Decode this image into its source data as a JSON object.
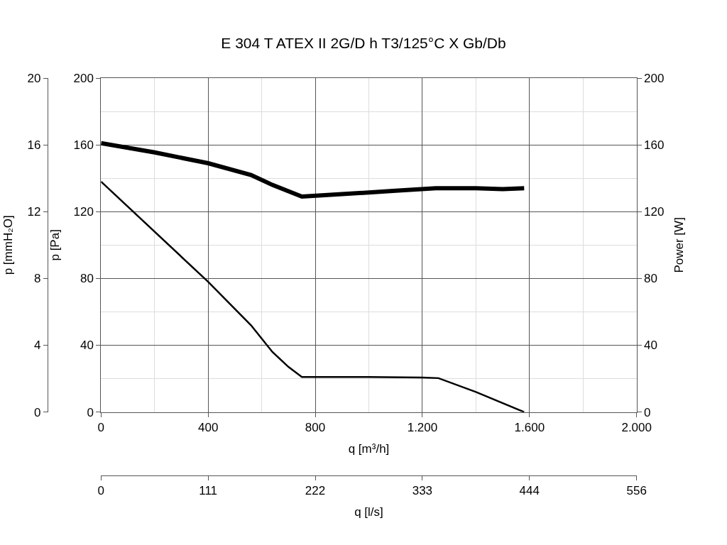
{
  "chart_data": {
    "type": "line",
    "title": "E 304 T ATEX II 2G/D h T3/125°C X Gb/Db",
    "xlabel": "q [m³/h]",
    "ylabel": "p [Pa]",
    "y2label": "Power [W]",
    "y3label": "p [mmH₂O]",
    "x2label": "q [l/s]",
    "xlim": [
      0,
      2000
    ],
    "xticks": [
      0,
      {
        "value": 200,
        "label": null
      },
      400,
      {
        "value": 600,
        "label": null
      },
      800,
      {
        "value": 1000,
        "label": null
      },
      {
        "value": 1200,
        "label": "1.200"
      },
      {
        "value": 1400,
        "label": null
      },
      {
        "value": 1600,
        "label": "1.600"
      },
      {
        "value": 1800,
        "label": null
      },
      {
        "value": 2000,
        "label": "2.000"
      }
    ],
    "ylim": [
      0,
      200
    ],
    "yticks": [
      0,
      {
        "value": 20,
        "label": null
      },
      40,
      {
        "value": 60,
        "label": null
      },
      80,
      {
        "value": 100,
        "label": null
      },
      120,
      {
        "value": 140,
        "label": null
      },
      160,
      {
        "value": 180,
        "label": null
      },
      200
    ],
    "y2lim": [
      0,
      200
    ],
    "y2ticks": [
      0,
      40,
      80,
      120,
      160,
      200
    ],
    "y3lim": [
      0,
      20
    ],
    "y3ticks": [
      0,
      4,
      8,
      12,
      16,
      20
    ],
    "x2lim": [
      0,
      555.6
    ],
    "x2ticks": [
      0,
      {
        "value": 111.1,
        "label": "111"
      },
      {
        "value": 222.2,
        "label": "222"
      },
      {
        "value": 333.3,
        "label": "333"
      },
      {
        "value": 444.4,
        "label": "444"
      },
      {
        "value": 555.6,
        "label": "556"
      }
    ],
    "grid": true,
    "series": [
      {
        "color": "#000000",
        "x": [
          0,
          400,
          560,
          640,
          700,
          750,
          800,
          1000,
          1200,
          1260,
          1400,
          1580
        ],
        "values": [
          138,
          78,
          52,
          36,
          27,
          21,
          21,
          21,
          20.7,
          20.3,
          12,
          0
        ]
      },
      {
        "color": "#000000",
        "axis": "y2",
        "x": [
          0,
          200,
          400,
          560,
          640,
          750,
          900,
          1100,
          1250,
          1400,
          1500,
          1580
        ],
        "values": [
          161,
          155.5,
          149,
          142,
          136,
          129,
          130.5,
          132.5,
          134,
          134,
          133.5,
          134
        ]
      }
    ]
  }
}
